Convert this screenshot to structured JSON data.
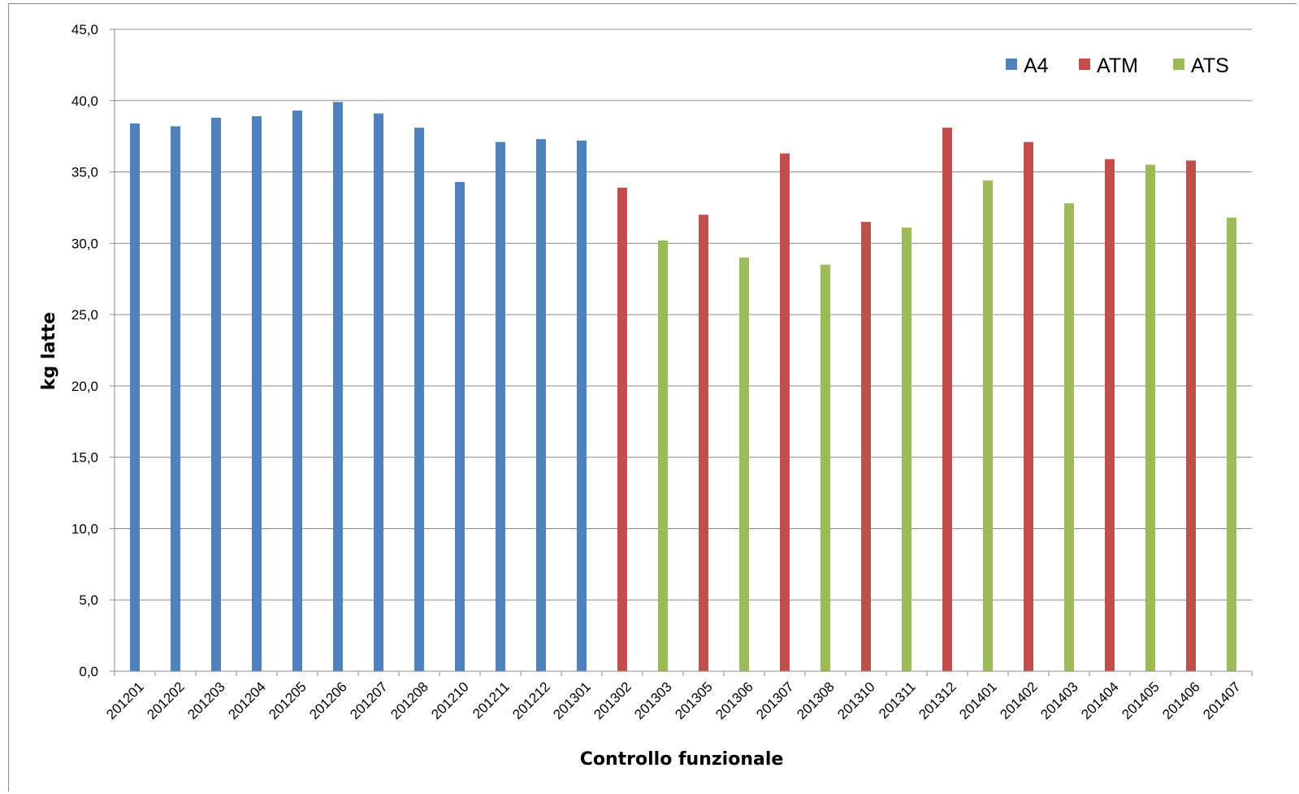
{
  "chart_data": {
    "type": "bar",
    "title": "",
    "xlabel": "Controllo funzionale",
    "ylabel": "kg latte",
    "ylim": [
      0,
      45
    ],
    "yticks": [
      "0,0",
      "5,0",
      "10,0",
      "15,0",
      "20,0",
      "25,0",
      "30,0",
      "35,0",
      "40,0",
      "45,0"
    ],
    "grid": true,
    "legend_position": "top-right",
    "categories": [
      "201201",
      "201202",
      "201203",
      "201204",
      "201205",
      "201206",
      "201207",
      "201208",
      "201210",
      "201211",
      "201212",
      "201301",
      "201302",
      "201303",
      "201305",
      "201306",
      "201307",
      "201308",
      "201310",
      "201311",
      "201312",
      "201401",
      "201402",
      "201403",
      "201404",
      "201405",
      "201406",
      "201407"
    ],
    "series": [
      {
        "name": "A4",
        "color": "#4f81bd",
        "values": [
          38.4,
          38.2,
          38.8,
          38.9,
          39.3,
          39.9,
          39.1,
          38.1,
          34.3,
          37.1,
          37.3,
          37.2,
          null,
          null,
          null,
          null,
          null,
          null,
          null,
          null,
          null,
          null,
          null,
          null,
          null,
          null,
          null,
          null
        ]
      },
      {
        "name": "ATM",
        "color": "#c0504d",
        "values": [
          null,
          null,
          null,
          null,
          null,
          null,
          null,
          null,
          null,
          null,
          null,
          null,
          33.9,
          null,
          32.0,
          null,
          36.3,
          null,
          31.5,
          null,
          38.1,
          null,
          37.1,
          null,
          35.9,
          null,
          35.8,
          null
        ]
      },
      {
        "name": "ATS",
        "color": "#9bbb59",
        "values": [
          null,
          null,
          null,
          null,
          null,
          null,
          null,
          null,
          null,
          null,
          null,
          null,
          null,
          30.2,
          null,
          29.0,
          null,
          28.5,
          null,
          31.1,
          null,
          34.4,
          null,
          32.8,
          null,
          35.5,
          null,
          31.8
        ]
      }
    ]
  }
}
